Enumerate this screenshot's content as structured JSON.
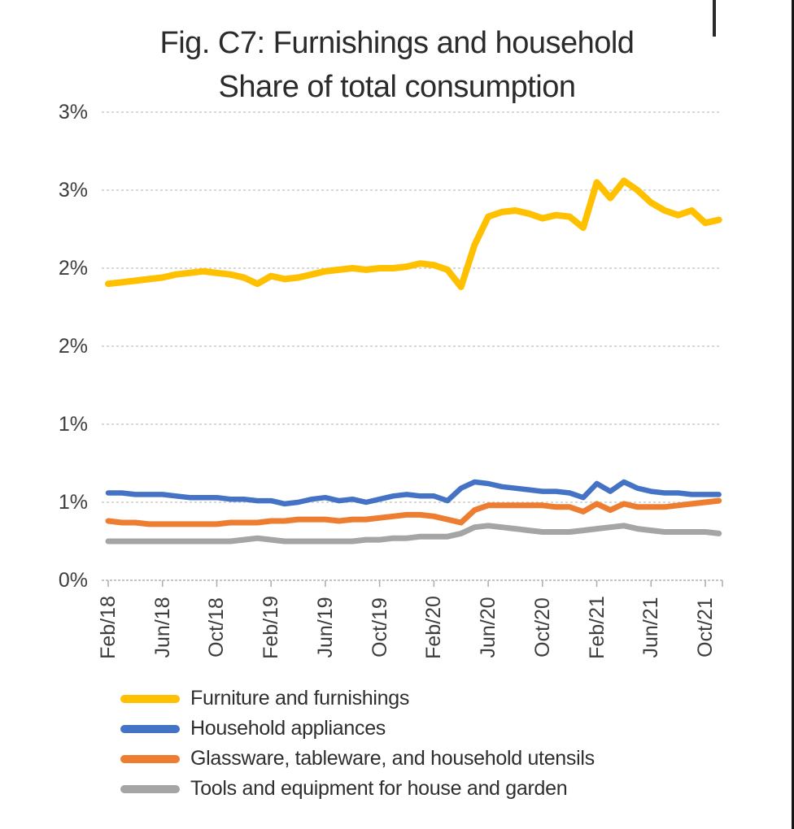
{
  "title": {
    "line1": "Fig. C7: Furnishings and household",
    "line2": "Share of total consumption"
  },
  "colors": {
    "gridline": "#cccccc",
    "axis": "#b0b0b0",
    "axis_text": "#3d3d3d",
    "title_text": "#2b2b2b"
  },
  "chart_data": {
    "type": "line",
    "title": "Fig. C7: Furnishings and household — Share of total consumption",
    "grid": "horizontal",
    "legend_position": "bottom-left",
    "x": [
      "Feb/18",
      "Mar/18",
      "Apr/18",
      "May/18",
      "Jun/18",
      "Jul/18",
      "Aug/18",
      "Sep/18",
      "Oct/18",
      "Nov/18",
      "Dec/18",
      "Jan/19",
      "Feb/19",
      "Mar/19",
      "Apr/19",
      "May/19",
      "Jun/19",
      "Jul/19",
      "Aug/19",
      "Sep/19",
      "Oct/19",
      "Nov/19",
      "Dec/19",
      "Jan/20",
      "Feb/20",
      "Mar/20",
      "Apr/20",
      "May/20",
      "Jun/20",
      "Jul/20",
      "Aug/20",
      "Sep/20",
      "Oct/20",
      "Nov/20",
      "Dec/20",
      "Jan/21",
      "Feb/21",
      "Mar/21",
      "Apr/21",
      "May/21",
      "Jun/21",
      "Jul/21",
      "Aug/21",
      "Sep/21",
      "Oct/21",
      "Nov/21"
    ],
    "x_axis": {
      "tick_labels": [
        "Feb/18",
        "Jun/18",
        "Oct/18",
        "Feb/19",
        "Jun/19",
        "Oct/19",
        "Feb/20",
        "Jun/20",
        "Oct/20",
        "Feb/21",
        "Jun/21",
        "Oct/21"
      ],
      "tick_every_months": 4
    },
    "y_axis": {
      "min": 0,
      "max": 3,
      "unit": "%",
      "tick_values": [
        0,
        0.5,
        1.0,
        1.5,
        2.0,
        2.5,
        3.0
      ],
      "tick_labels_bottom_to_top": [
        "0%",
        "1%",
        "1%",
        "2%",
        "2%",
        "3%",
        "3%"
      ]
    },
    "series": [
      {
        "name": "Furniture and furnishings",
        "color": "#FFC000",
        "values": [
          1.9,
          1.91,
          1.92,
          1.93,
          1.94,
          1.96,
          1.97,
          1.98,
          1.97,
          1.96,
          1.94,
          1.9,
          1.95,
          1.93,
          1.94,
          1.96,
          1.98,
          1.99,
          2.0,
          1.99,
          2.0,
          2.0,
          2.01,
          2.03,
          2.02,
          1.99,
          1.88,
          2.15,
          2.33,
          2.36,
          2.37,
          2.35,
          2.32,
          2.34,
          2.33,
          2.26,
          2.55,
          2.45,
          2.56,
          2.5,
          2.42,
          2.37,
          2.34,
          2.37,
          2.29,
          2.31
        ]
      },
      {
        "name": "Household appliances",
        "color": "#4472C4",
        "values": [
          0.56,
          0.56,
          0.55,
          0.55,
          0.55,
          0.54,
          0.53,
          0.53,
          0.53,
          0.52,
          0.52,
          0.51,
          0.51,
          0.49,
          0.5,
          0.52,
          0.53,
          0.51,
          0.52,
          0.5,
          0.52,
          0.54,
          0.55,
          0.54,
          0.54,
          0.51,
          0.59,
          0.63,
          0.62,
          0.6,
          0.59,
          0.58,
          0.57,
          0.57,
          0.56,
          0.53,
          0.62,
          0.57,
          0.63,
          0.59,
          0.57,
          0.56,
          0.56,
          0.55,
          0.55,
          0.55
        ]
      },
      {
        "name": "Glassware, tableware, and household utensils",
        "color": "#ED7D31",
        "values": [
          0.38,
          0.37,
          0.37,
          0.36,
          0.36,
          0.36,
          0.36,
          0.36,
          0.36,
          0.37,
          0.37,
          0.37,
          0.38,
          0.38,
          0.39,
          0.39,
          0.39,
          0.38,
          0.39,
          0.39,
          0.4,
          0.41,
          0.42,
          0.42,
          0.41,
          0.39,
          0.37,
          0.45,
          0.48,
          0.48,
          0.48,
          0.48,
          0.48,
          0.47,
          0.47,
          0.44,
          0.49,
          0.45,
          0.49,
          0.47,
          0.47,
          0.47,
          0.48,
          0.49,
          0.5,
          0.51
        ]
      },
      {
        "name": "Tools and equipment for house and garden",
        "color": "#A5A5A5",
        "values": [
          0.25,
          0.25,
          0.25,
          0.25,
          0.25,
          0.25,
          0.25,
          0.25,
          0.25,
          0.25,
          0.26,
          0.27,
          0.26,
          0.25,
          0.25,
          0.25,
          0.25,
          0.25,
          0.25,
          0.26,
          0.26,
          0.27,
          0.27,
          0.28,
          0.28,
          0.28,
          0.3,
          0.34,
          0.35,
          0.34,
          0.33,
          0.32,
          0.31,
          0.31,
          0.31,
          0.32,
          0.33,
          0.34,
          0.35,
          0.33,
          0.32,
          0.31,
          0.31,
          0.31,
          0.31,
          0.3
        ]
      }
    ]
  }
}
